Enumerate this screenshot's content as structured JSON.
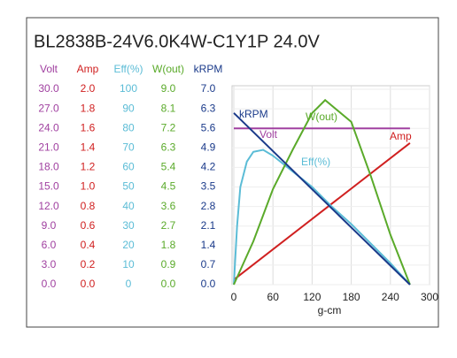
{
  "chart_data": {
    "type": "line",
    "title": "BL2838B-24V6.0K4W-C1Y1P   24.0V",
    "x_label": "g-cm",
    "xlim": [
      0,
      300
    ],
    "xticks": [
      0,
      60,
      120,
      180,
      240,
      300
    ],
    "grid": true,
    "series": [
      {
        "name": "Volt",
        "color": "#a040a0",
        "x": [
          0,
          270
        ],
        "values": [
          24,
          24
        ],
        "ylim": [
          0,
          30
        ],
        "yticks": [
          {
            "value": 0,
            "label": "0.0"
          },
          {
            "value": 3,
            "label": "3.0"
          },
          {
            "value": 6,
            "label": "6.0"
          },
          {
            "value": 9,
            "label": "9.0"
          },
          {
            "value": 12,
            "label": "12.0"
          },
          {
            "value": 15,
            "label": "15.0"
          },
          {
            "value": 18,
            "label": "18.0"
          },
          {
            "value": 21,
            "label": "21.0"
          },
          {
            "value": 24,
            "label": "24.0"
          },
          {
            "value": 27,
            "label": "27.0"
          },
          {
            "value": 30,
            "label": "30.0"
          }
        ]
      },
      {
        "name": "Amp",
        "color": "#d02020",
        "x": [
          0,
          270
        ],
        "values": [
          0.05,
          1.45
        ],
        "ylim": [
          0,
          2
        ],
        "yticks": [
          {
            "value": 0,
            "label": "0.0"
          },
          0.2,
          0.4,
          0.6,
          0.8,
          {
            "value": 1,
            "label": "1.0"
          },
          1.2,
          1.4,
          1.6,
          1.8,
          {
            "value": 2,
            "label": "2.0"
          }
        ]
      },
      {
        "name": "Eff(%)",
        "color": "#5bbcd6",
        "x": [
          0,
          5,
          10,
          20,
          30,
          45,
          60,
          90,
          120,
          150,
          180,
          210,
          240,
          270
        ],
        "values": [
          0,
          30,
          50,
          63,
          68,
          69,
          66,
          58,
          50,
          40,
          31,
          21,
          11,
          0
        ],
        "ylim": [
          0,
          100
        ],
        "yticks": [
          0,
          10,
          20,
          30,
          40,
          50,
          60,
          70,
          80,
          90,
          100
        ]
      },
      {
        "name": "W(out)",
        "color": "#5aaa2a",
        "x": [
          0,
          30,
          60,
          90,
          120,
          140,
          180,
          210,
          240,
          270
        ],
        "values": [
          0,
          2.0,
          4.4,
          6.2,
          7.9,
          8.5,
          7.5,
          5.0,
          2.3,
          0
        ],
        "ylim": [
          0,
          9
        ],
        "yticks": [
          {
            "value": 0,
            "label": "0.0"
          },
          0.9,
          1.8,
          2.7,
          3.6,
          4.5,
          5.4,
          6.3,
          7.2,
          8.1,
          {
            "value": 9,
            "label": "9.0"
          }
        ]
      },
      {
        "name": "kRPM",
        "color": "#1a3a8a",
        "x": [
          0,
          270
        ],
        "values": [
          6.15,
          0
        ],
        "ylim": [
          0,
          7
        ],
        "yticks": [
          {
            "value": 0,
            "label": "0.0"
          },
          0.7,
          1.4,
          2.1,
          2.8,
          3.5,
          4.2,
          4.9,
          5.6,
          6.3,
          {
            "value": 7,
            "label": "7.0"
          }
        ]
      }
    ]
  }
}
